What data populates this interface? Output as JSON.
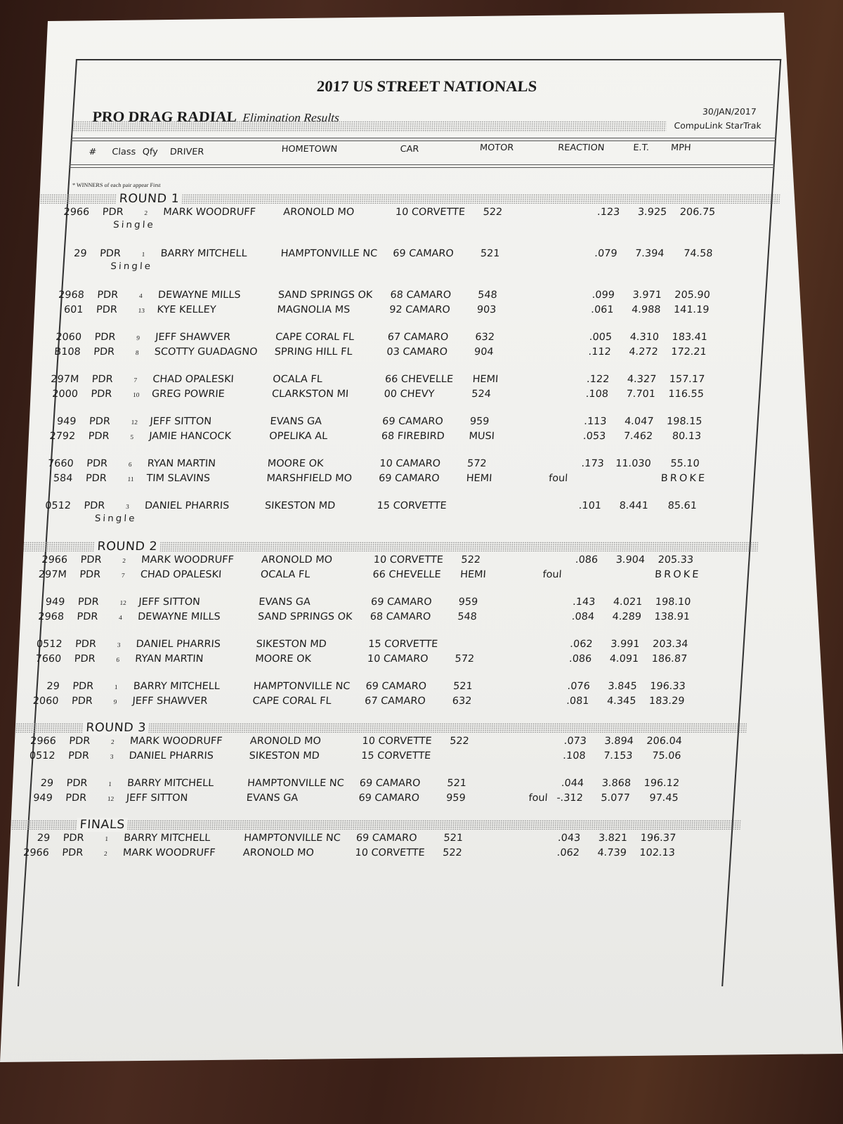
{
  "header": {
    "title": "2017 US STREET NATIONALS",
    "class_name": "PRO DRAG RADIAL",
    "subtitle": "Elimination Results",
    "date": "30/JAN/2017",
    "system": "CompuLink  StarTrak"
  },
  "columns": {
    "num": "#",
    "class": "Class",
    "qfy": "Qfy",
    "driver": "DRIVER",
    "hometown": "HOMETOWN",
    "car": "CAR",
    "motor": "MOTOR",
    "reaction": "REACTION",
    "et": "E.T.",
    "mph": "MPH"
  },
  "note": "* WINNERS of each pair appear First",
  "single_label": "Single",
  "rounds": [
    {
      "label": "ROUND 1",
      "pairs": [
        {
          "single": true,
          "rows": [
            {
              "num": "2966",
              "cls": "PDR",
              "qfy": "2",
              "driver": "MARK WOODRUFF",
              "home": "ARONOLD  MO",
              "car": "10 CORVETTE",
              "motor": "522",
              "foul": "",
              "rt": ".123",
              "et": "3.925",
              "mph": "206.75",
              "broke": ""
            }
          ]
        },
        {
          "single": true,
          "rows": [
            {
              "num": "29",
              "cls": "PDR",
              "qfy": "1",
              "driver": "BARRY MITCHELL",
              "home": "HAMPTONVILLE  NC",
              "car": "69 CAMARO",
              "motor": "521",
              "foul": "",
              "rt": ".079",
              "et": "7.394",
              "mph": "74.58",
              "broke": ""
            }
          ]
        },
        {
          "rows": [
            {
              "num": "2968",
              "cls": "PDR",
              "qfy": "4",
              "driver": "DEWAYNE MILLS",
              "home": "SAND SPRINGS  OK",
              "car": "68 CAMARO",
              "motor": "548",
              "foul": "",
              "rt": ".099",
              "et": "3.971",
              "mph": "205.90",
              "broke": ""
            },
            {
              "num": "601",
              "cls": "PDR",
              "qfy": "13",
              "driver": "KYE KELLEY",
              "home": "MAGNOLIA  MS",
              "car": "92 CAMARO",
              "motor": "903",
              "foul": "",
              "rt": ".061",
              "et": "4.988",
              "mph": "141.19",
              "broke": ""
            }
          ]
        },
        {
          "rows": [
            {
              "num": "2060",
              "cls": "PDR",
              "qfy": "9",
              "driver": "JEFF SHAWVER",
              "home": "CAPE CORAL  FL",
              "car": "67 CAMARO",
              "motor": "632",
              "foul": "",
              "rt": ".005",
              "et": "4.310",
              "mph": "183.41",
              "broke": ""
            },
            {
              "num": "B108",
              "cls": "PDR",
              "qfy": "8",
              "driver": "SCOTTY GUADAGNO",
              "home": "SPRING HILL  FL",
              "car": "03 CAMARO",
              "motor": "904",
              "foul": "",
              "rt": ".112",
              "et": "4.272",
              "mph": "172.21",
              "broke": ""
            }
          ]
        },
        {
          "rows": [
            {
              "num": "297M",
              "cls": "PDR",
              "qfy": "7",
              "driver": "CHAD OPALESKI",
              "home": "OCALA  FL",
              "car": "66 CHEVELLE",
              "motor": "HEMI",
              "foul": "",
              "rt": ".122",
              "et": "4.327",
              "mph": "157.17",
              "broke": ""
            },
            {
              "num": "2000",
              "cls": "PDR",
              "qfy": "10",
              "driver": "GREG POWRIE",
              "home": "CLARKSTON  MI",
              "car": "00 CHEVY",
              "motor": "524",
              "foul": "",
              "rt": ".108",
              "et": "7.701",
              "mph": "116.55",
              "broke": ""
            }
          ]
        },
        {
          "rows": [
            {
              "num": "949",
              "cls": "PDR",
              "qfy": "12",
              "driver": "JEFF SITTON",
              "home": "EVANS  GA",
              "car": "69 CAMARO",
              "motor": "959",
              "foul": "",
              "rt": ".113",
              "et": "4.047",
              "mph": "198.15",
              "broke": ""
            },
            {
              "num": "2792",
              "cls": "PDR",
              "qfy": "5",
              "driver": "JAMIE HANCOCK",
              "home": "OPELIKA  AL",
              "car": "68 FIREBIRD",
              "motor": "MUSI",
              "foul": "",
              "rt": ".053",
              "et": "7.462",
              "mph": "80.13",
              "broke": ""
            }
          ]
        },
        {
          "rows": [
            {
              "num": "7660",
              "cls": "PDR",
              "qfy": "6",
              "driver": "RYAN MARTIN",
              "home": "MOORE  OK",
              "car": "10 CAMARO",
              "motor": "572",
              "foul": "",
              "rt": ".173",
              "et": "11.030",
              "mph": "55.10",
              "broke": ""
            },
            {
              "num": "584",
              "cls": "PDR",
              "qfy": "11",
              "driver": "TIM SLAVINS",
              "home": "MARSHFIELD  MO",
              "car": "69 CAMARO",
              "motor": "HEMI",
              "foul": "foul",
              "rt": "",
              "et": "",
              "mph": "",
              "broke": "BROKE"
            }
          ]
        },
        {
          "single": true,
          "rows": [
            {
              "num": "0512",
              "cls": "PDR",
              "qfy": "3",
              "driver": "DANIEL PHARRIS",
              "home": "SIKESTON  MD",
              "car": "15 CORVETTE",
              "motor": "",
              "foul": "",
              "rt": ".101",
              "et": "8.441",
              "mph": "85.61",
              "broke": ""
            }
          ]
        }
      ]
    },
    {
      "label": "ROUND 2",
      "pairs": [
        {
          "rows": [
            {
              "num": "2966",
              "cls": "PDR",
              "qfy": "2",
              "driver": "MARK WOODRUFF",
              "home": "ARONOLD  MO",
              "car": "10 CORVETTE",
              "motor": "522",
              "foul": "",
              "rt": ".086",
              "et": "3.904",
              "mph": "205.33",
              "broke": ""
            },
            {
              "num": "297M",
              "cls": "PDR",
              "qfy": "7",
              "driver": "CHAD OPALESKI",
              "home": "OCALA  FL",
              "car": "66 CHEVELLE",
              "motor": "HEMI",
              "foul": "foul",
              "rt": "",
              "et": "",
              "mph": "",
              "broke": "BROKE"
            }
          ]
        },
        {
          "rows": [
            {
              "num": "949",
              "cls": "PDR",
              "qfy": "12",
              "driver": "JEFF SITTON",
              "home": "EVANS  GA",
              "car": "69 CAMARO",
              "motor": "959",
              "foul": "",
              "rt": ".143",
              "et": "4.021",
              "mph": "198.10",
              "broke": ""
            },
            {
              "num": "2968",
              "cls": "PDR",
              "qfy": "4",
              "driver": "DEWAYNE MILLS",
              "home": "SAND SPRINGS  OK",
              "car": "68 CAMARO",
              "motor": "548",
              "foul": "",
              "rt": ".084",
              "et": "4.289",
              "mph": "138.91",
              "broke": ""
            }
          ]
        },
        {
          "rows": [
            {
              "num": "0512",
              "cls": "PDR",
              "qfy": "3",
              "driver": "DANIEL PHARRIS",
              "home": "SIKESTON  MD",
              "car": "15 CORVETTE",
              "motor": "",
              "foul": "",
              "rt": ".062",
              "et": "3.991",
              "mph": "203.34",
              "broke": ""
            },
            {
              "num": "7660",
              "cls": "PDR",
              "qfy": "6",
              "driver": "RYAN MARTIN",
              "home": "MOORE  OK",
              "car": "10 CAMARO",
              "motor": "572",
              "foul": "",
              "rt": ".086",
              "et": "4.091",
              "mph": "186.87",
              "broke": ""
            }
          ]
        },
        {
          "rows": [
            {
              "num": "29",
              "cls": "PDR",
              "qfy": "1",
              "driver": "BARRY MITCHELL",
              "home": "HAMPTONVILLE  NC",
              "car": "69 CAMARO",
              "motor": "521",
              "foul": "",
              "rt": ".076",
              "et": "3.845",
              "mph": "196.33",
              "broke": ""
            },
            {
              "num": "2060",
              "cls": "PDR",
              "qfy": "9",
              "driver": "JEFF SHAWVER",
              "home": "CAPE CORAL  FL",
              "car": "67 CAMARO",
              "motor": "632",
              "foul": "",
              "rt": ".081",
              "et": "4.345",
              "mph": "183.29",
              "broke": ""
            }
          ]
        }
      ]
    },
    {
      "label": "ROUND 3",
      "pairs": [
        {
          "rows": [
            {
              "num": "2966",
              "cls": "PDR",
              "qfy": "2",
              "driver": "MARK WOODRUFF",
              "home": "ARONOLD  MO",
              "car": "10 CORVETTE",
              "motor": "522",
              "foul": "",
              "rt": ".073",
              "et": "3.894",
              "mph": "206.04",
              "broke": ""
            },
            {
              "num": "0512",
              "cls": "PDR",
              "qfy": "3",
              "driver": "DANIEL PHARRIS",
              "home": "SIKESTON  MD",
              "car": "15 CORVETTE",
              "motor": "",
              "foul": "",
              "rt": ".108",
              "et": "7.153",
              "mph": "75.06",
              "broke": ""
            }
          ]
        },
        {
          "rows": [
            {
              "num": "29",
              "cls": "PDR",
              "qfy": "1",
              "driver": "BARRY MITCHELL",
              "home": "HAMPTONVILLE  NC",
              "car": "69 CAMARO",
              "motor": "521",
              "foul": "",
              "rt": ".044",
              "et": "3.868",
              "mph": "196.12",
              "broke": ""
            },
            {
              "num": "949",
              "cls": "PDR",
              "qfy": "12",
              "driver": "JEFF SITTON",
              "home": "EVANS  GA",
              "car": "69 CAMARO",
              "motor": "959",
              "foul": "foul",
              "rt": "-.312",
              "et": "5.077",
              "mph": "97.45",
              "broke": ""
            }
          ]
        }
      ]
    },
    {
      "label": "FINALS",
      "pairs": [
        {
          "rows": [
            {
              "num": "29",
              "cls": "PDR",
              "qfy": "1",
              "driver": "BARRY MITCHELL",
              "home": "HAMPTONVILLE  NC",
              "car": "69 CAMARO",
              "motor": "521",
              "foul": "",
              "rt": ".043",
              "et": "3.821",
              "mph": "196.37",
              "broke": ""
            },
            {
              "num": "2966",
              "cls": "PDR",
              "qfy": "2",
              "driver": "MARK WOODRUFF",
              "home": "ARONOLD  MO",
              "car": "10 CORVETTE",
              "motor": "522",
              "foul": "",
              "rt": ".062",
              "et": "4.739",
              "mph": "102.13",
              "broke": ""
            }
          ]
        }
      ]
    }
  ]
}
